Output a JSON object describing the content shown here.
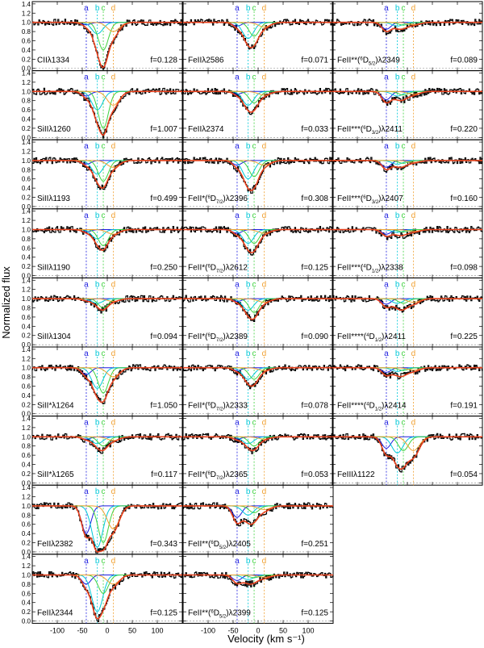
{
  "figure": {
    "ylabel": "Normalized flux",
    "xlabel": "Velocity (km s⁻¹)",
    "component_labels": [
      "a",
      "b",
      "c",
      "d"
    ],
    "colors": {
      "data": "#000000",
      "total_fit": "#e8401c",
      "comp_a": "#1a1adf",
      "comp_b": "#00c8d8",
      "comp_c": "#3fd23f",
      "comp_d": "#f0a030",
      "fill": "#f6b800",
      "zero_line": "#888888"
    }
  },
  "chart_data": {
    "type": "line",
    "layout": "grid of spectral absorption-line panels, 3 columns x 9 rows (first 7 rows full, last 2 rows with 2 panels)",
    "xlim": [
      -150,
      150
    ],
    "ylim": [
      -0.05,
      1.45
    ],
    "xticks": [
      -100,
      -50,
      0,
      50,
      100
    ],
    "xtick_labels": [
      "-100",
      "-50",
      "0",
      "50",
      "100"
    ],
    "yticks": [
      0.0,
      0.2,
      0.4,
      0.6,
      0.8,
      1.0,
      1.2,
      1.4
    ],
    "ytick_labels": [
      "0.0",
      "0.2",
      "0.4",
      "0.6",
      "0.8",
      "1.0",
      "1.2",
      "1.4"
    ],
    "component_velocities": [
      -42,
      -20,
      -8,
      12
    ],
    "components": [
      {
        "name": "a",
        "velocity": -42
      },
      {
        "name": "b",
        "velocity": -20
      },
      {
        "name": "c",
        "velocity": -8
      },
      {
        "name": "d",
        "velocity": 12
      }
    ],
    "panels": [
      {
        "row": 0,
        "col": 0,
        "name": "CIIλ1334",
        "parts": [],
        "f": "0.128",
        "min_flux": 0.02,
        "depths": [
          0.05,
          0.25,
          0.6,
          0.2
        ]
      },
      {
        "row": 0,
        "col": 1,
        "name": "FeIIλ2586",
        "parts": [],
        "f": "0.071",
        "min_flux": 0.45,
        "depths": [
          0.08,
          0.35,
          0.3,
          0.1
        ]
      },
      {
        "row": 0,
        "col": 2,
        "name": "FeII**",
        "parts": [
          "6",
          "5/2",
          "λ2349"
        ],
        "f": "0.089",
        "min_flux": 0.8,
        "depths": [
          0.15,
          0.08,
          0.06,
          0.05
        ]
      },
      {
        "row": 1,
        "col": 0,
        "name": "SiIIλ1260",
        "parts": [],
        "f": "1.007",
        "min_flux": 0.05,
        "depths": [
          0.1,
          0.4,
          0.8,
          0.3
        ]
      },
      {
        "row": 1,
        "col": 1,
        "name": "FeIIλ2374",
        "parts": [],
        "f": "0.033",
        "min_flux": 0.55,
        "depths": [
          0.06,
          0.3,
          0.25,
          0.08
        ]
      },
      {
        "row": 1,
        "col": 2,
        "name": "FeII***",
        "parts": [
          "6",
          "3/2",
          "λ2411"
        ],
        "f": "0.220",
        "min_flux": 0.75,
        "depths": [
          0.18,
          0.1,
          0.08,
          0.06
        ]
      },
      {
        "row": 2,
        "col": 0,
        "name": "SiIIλ1193",
        "parts": [],
        "f": "0.499",
        "min_flux": 0.4,
        "depths": [
          0.08,
          0.3,
          0.45,
          0.15
        ]
      },
      {
        "row": 2,
        "col": 1,
        "name": "FeII*",
        "parts": [
          "6",
          "7/2",
          "λ2396"
        ],
        "f": "0.308",
        "min_flux": 0.35,
        "depths": [
          0.1,
          0.4,
          0.35,
          0.1
        ]
      },
      {
        "row": 2,
        "col": 2,
        "name": "FeII***",
        "parts": [
          "6",
          "3/2",
          "λ2407"
        ],
        "f": "0.160",
        "min_flux": 0.8,
        "depths": [
          0.15,
          0.08,
          0.06,
          0.04
        ]
      },
      {
        "row": 3,
        "col": 0,
        "name": "SiIIλ1190",
        "parts": [],
        "f": "0.250",
        "min_flux": 0.55,
        "depths": [
          0.05,
          0.2,
          0.35,
          0.1
        ]
      },
      {
        "row": 3,
        "col": 1,
        "name": "FeII*",
        "parts": [
          "6",
          "7/2",
          "λ2612"
        ],
        "f": "0.125",
        "min_flux": 0.5,
        "depths": [
          0.08,
          0.3,
          0.3,
          0.08
        ]
      },
      {
        "row": 3,
        "col": 2,
        "name": "FeII***",
        "parts": [
          "4",
          "1/2",
          "λ2338"
        ],
        "f": "0.098",
        "min_flux": 0.85,
        "depths": [
          0.1,
          0.06,
          0.05,
          0.04
        ]
      },
      {
        "row": 4,
        "col": 0,
        "name": "SiIIλ1304",
        "parts": [],
        "f": "0.094",
        "min_flux": 0.75,
        "depths": [
          0.04,
          0.1,
          0.2,
          0.06
        ]
      },
      {
        "row": 4,
        "col": 1,
        "name": "FeII*",
        "parts": [
          "6",
          "7/2",
          "λ2389"
        ],
        "f": "0.090",
        "min_flux": 0.55,
        "depths": [
          0.06,
          0.25,
          0.3,
          0.08
        ]
      },
      {
        "row": 4,
        "col": 2,
        "name": "FeII****",
        "parts": [
          "4",
          "1/2",
          "λ2411"
        ],
        "f": "0.225",
        "min_flux": 0.75,
        "depths": [
          0.12,
          0.1,
          0.1,
          0.08
        ]
      },
      {
        "row": 5,
        "col": 0,
        "name": "SiII*λ1264",
        "parts": [],
        "f": "1.050",
        "min_flux": 0.25,
        "depths": [
          0.15,
          0.45,
          0.55,
          0.2
        ]
      },
      {
        "row": 5,
        "col": 1,
        "name": "FeII*",
        "parts": [
          "6",
          "7/2",
          "λ2333"
        ],
        "f": "0.078",
        "min_flux": 0.6,
        "depths": [
          0.06,
          0.25,
          0.25,
          0.06
        ]
      },
      {
        "row": 5,
        "col": 2,
        "name": "FeII****",
        "parts": [
          "4",
          "1/2",
          "λ2414"
        ],
        "f": "0.191",
        "min_flux": 0.8,
        "depths": [
          0.1,
          0.08,
          0.06,
          0.05
        ]
      },
      {
        "row": 6,
        "col": 0,
        "name": "SiII*λ1265",
        "parts": [],
        "f": "0.117",
        "min_flux": 0.7,
        "depths": [
          0.05,
          0.15,
          0.2,
          0.08
        ]
      },
      {
        "row": 6,
        "col": 1,
        "name": "FeII*",
        "parts": [
          "6",
          "7/2",
          "λ2365"
        ],
        "f": "0.053",
        "min_flux": 0.7,
        "depths": [
          0.05,
          0.15,
          0.2,
          0.05
        ]
      },
      {
        "row": 6,
        "col": 2,
        "name": "FeIIIλ1122",
        "parts": [],
        "f": "0.054",
        "min_flux": 0.3,
        "depths": [
          0.25,
          0.35,
          0.3,
          0.3
        ]
      },
      {
        "row": 7,
        "col": 0,
        "name": "FeIIλ2382",
        "parts": [],
        "f": "0.343",
        "min_flux": 0.0,
        "depths": [
          0.6,
          0.9,
          0.8,
          0.5
        ]
      },
      {
        "row": 7,
        "col": 1,
        "name": "FeII**",
        "parts": [
          "6",
          "5/2",
          "λ2405"
        ],
        "f": "0.251",
        "min_flux": 0.6,
        "depths": [
          0.25,
          0.2,
          0.15,
          0.08
        ]
      },
      {
        "row": 8,
        "col": 0,
        "name": "FeIIλ2344",
        "parts": [],
        "f": "0.125",
        "min_flux": 0.05,
        "depths": [
          0.2,
          0.8,
          0.4,
          0.2
        ]
      },
      {
        "row": 8,
        "col": 1,
        "name": "FeII**",
        "parts": [
          "6",
          "5/2",
          "λ2399"
        ],
        "f": "0.125",
        "min_flux": 0.8,
        "depths": [
          0.12,
          0.1,
          0.06,
          0.05
        ]
      }
    ]
  }
}
